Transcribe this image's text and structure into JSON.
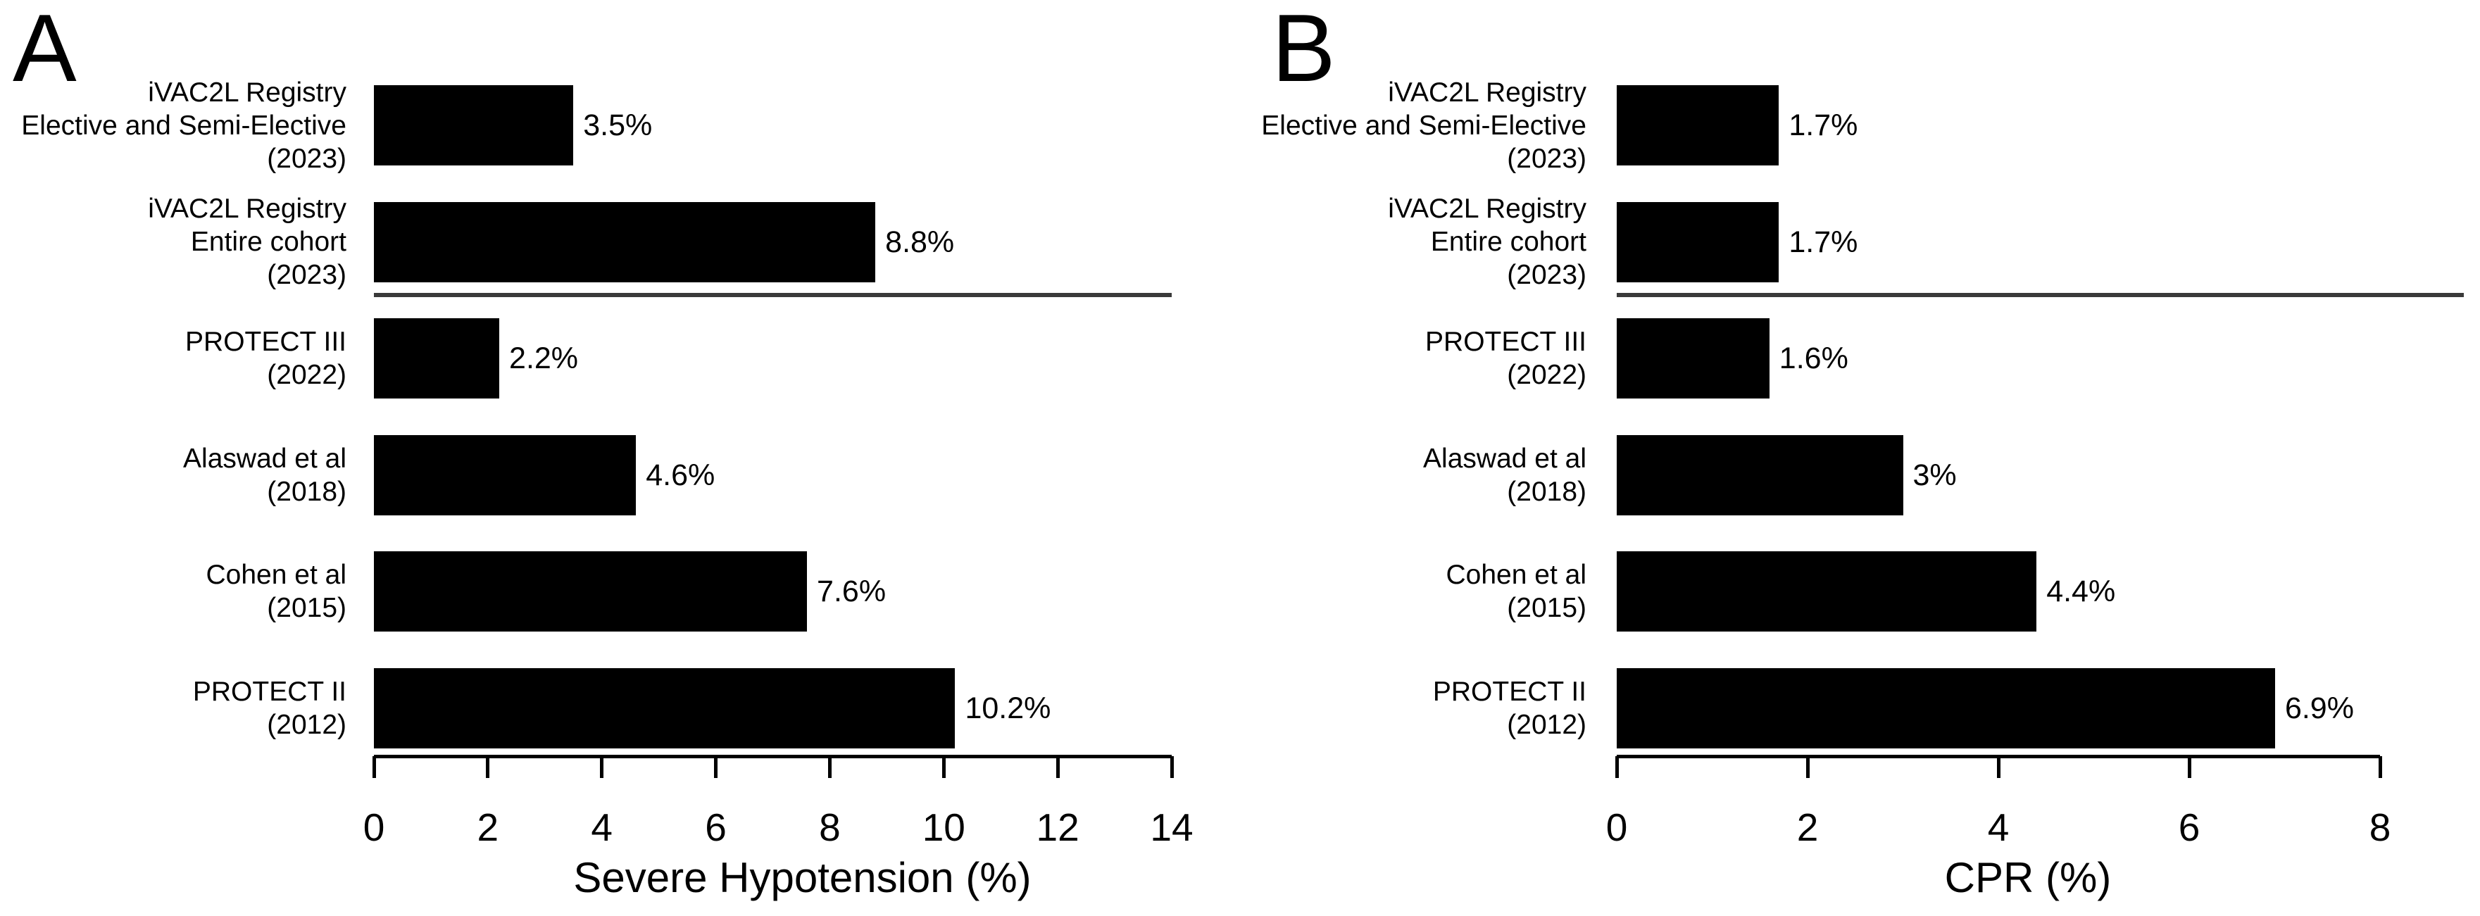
{
  "chart_data": [
    {
      "type": "bar",
      "orientation": "horizontal",
      "panel_label": "A",
      "xlabel": "Severe Hypotension (%)",
      "xlim": [
        0,
        14
      ],
      "xticks": [
        0,
        2,
        4,
        6,
        8,
        10,
        12,
        14
      ],
      "grid": false,
      "bar_color": "#000000",
      "categories": [
        [
          "iVAC2L Registry",
          "Elective and Semi-Elective",
          "(2023)"
        ],
        [
          "iVAC2L Registry",
          "Entire cohort",
          "(2023)"
        ],
        [
          "PROTECT III",
          "(2022)"
        ],
        [
          "Alaswad et al",
          "(2018)"
        ],
        [
          "Cohen et al",
          "(2015)"
        ],
        [
          "PROTECT II",
          "(2012)"
        ]
      ],
      "values": [
        3.5,
        8.8,
        2.2,
        4.6,
        7.6,
        10.2
      ],
      "data_labels": [
        "3.5%",
        "8.8%",
        "2.2%",
        "4.6%",
        "7.6%",
        "10.2%"
      ],
      "separator_after_index": 1
    },
    {
      "type": "bar",
      "orientation": "horizontal",
      "panel_label": "B",
      "xlabel": "CPR (%)",
      "xlim": [
        0,
        8
      ],
      "xticks": [
        0,
        2,
        4,
        6,
        8
      ],
      "grid": false,
      "bar_color": "#000000",
      "categories": [
        [
          "iVAC2L Registry",
          "Elective and Semi-Elective",
          "(2023)"
        ],
        [
          "iVAC2L Registry",
          "Entire cohort",
          "(2023)"
        ],
        [
          "PROTECT III",
          "(2022)"
        ],
        [
          "Alaswad et al",
          "(2018)"
        ],
        [
          "Cohen et al",
          "(2015)"
        ],
        [
          "PROTECT II",
          "(2012)"
        ]
      ],
      "values": [
        1.7,
        1.7,
        1.6,
        3,
        4.4,
        6.9
      ],
      "data_labels": [
        "1.7%",
        "1.7%",
        "1.6%",
        "3%",
        "4.4%",
        "6.9%"
      ],
      "separator_after_index": 1
    }
  ],
  "colors": {
    "bar": "#000000",
    "separator": "#3a3a3a",
    "axis": "#000000",
    "background": "#ffffff"
  }
}
